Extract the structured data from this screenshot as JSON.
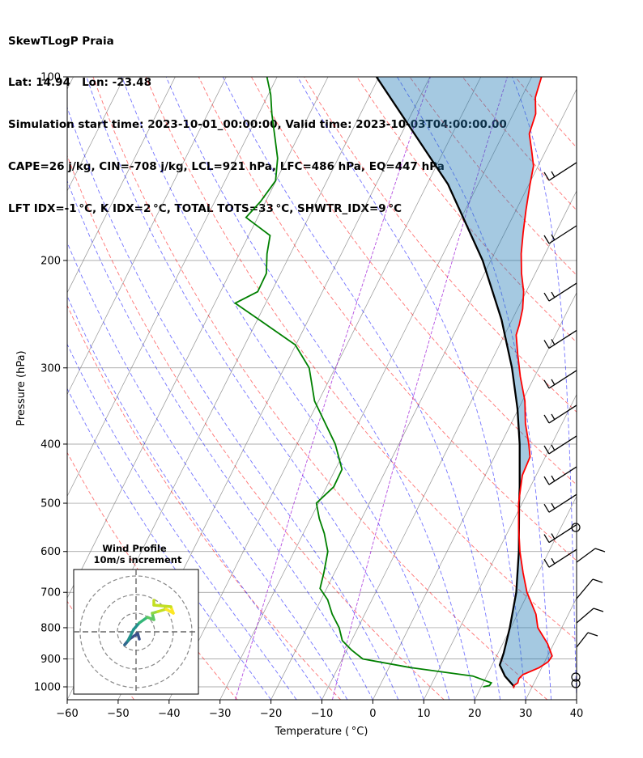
{
  "header": {
    "line1": "SkewTLogP Praia",
    "line2": "Lat: 14.94   Lon: -23.48",
    "line3": "Simulation start time: 2023-10-01_00:00:00, Valid time: 2023-10-03T04:00:00.00",
    "line4": "CAPE=26 j/kg, CIN=-708 j/kg, LCL=921 hPa, LFC=486 hPa, EQ=447 hPa",
    "line5": "LFT IDX=-1 °C, K IDX=2 °C, TOTAL TOTS=33 °C, SHWTR_IDX=9 °C"
  },
  "chart_data": {
    "type": "skewt",
    "xlabel": "Temperature ( °C)",
    "ylabel": "Pressure (hPa)",
    "xlim": [
      -60,
      40
    ],
    "ylim": [
      1050,
      100
    ],
    "x_ticks": [
      "−60",
      "−50",
      "−40",
      "−30",
      "−20",
      "−10",
      "0",
      "10",
      "20",
      "30",
      "40"
    ],
    "y_ticks": [
      {
        "p": 100,
        "label": "100"
      },
      {
        "p": 200,
        "label": "200"
      },
      {
        "p": 300,
        "label": "300"
      },
      {
        "p": 400,
        "label": "400"
      },
      {
        "p": 500,
        "label": "500"
      },
      {
        "p": 600,
        "label": "600"
      },
      {
        "p": 700,
        "label": "700"
      },
      {
        "p": 800,
        "label": "800"
      },
      {
        "p": 900,
        "label": "900"
      },
      {
        "p": 1000,
        "label": "1000"
      }
    ],
    "colors": {
      "temperature": "#ff0000",
      "dewpoint": "#008000",
      "parcel": "#000000",
      "cape_fill": "#1f77b4",
      "dry_adiabat": "#ff0000",
      "moist_adiabat": "#0000ff",
      "mixing_ratio": "#9400d3",
      "isotherm": "#808080"
    },
    "temperature": [
      [
        1005,
        26.5
      ],
      [
        995,
        26.3
      ],
      [
        985,
        26.8
      ],
      [
        970,
        26.6
      ],
      [
        955,
        27.0
      ],
      [
        930,
        29.5
      ],
      [
        910,
        30.7
      ],
      [
        890,
        30.9
      ],
      [
        850,
        28.8
      ],
      [
        800,
        25.3
      ],
      [
        760,
        23.6
      ],
      [
        700,
        19.7
      ],
      [
        650,
        17.0
      ],
      [
        600,
        14.3
      ],
      [
        550,
        11.8
      ],
      [
        500,
        9.3
      ],
      [
        470,
        8.1
      ],
      [
        450,
        7.3
      ],
      [
        420,
        7.0
      ],
      [
        400,
        5.5
      ],
      [
        370,
        2.8
      ],
      [
        340,
        0.5
      ],
      [
        310,
        -2.8
      ],
      [
        285,
        -5.5
      ],
      [
        265,
        -7.7
      ],
      [
        255,
        -8.1
      ],
      [
        240,
        -9.0
      ],
      [
        225,
        -10.5
      ],
      [
        210,
        -12.7
      ],
      [
        195,
        -14.7
      ],
      [
        180,
        -16.4
      ],
      [
        165,
        -18.1
      ],
      [
        150,
        -19.8
      ],
      [
        140,
        -20.9
      ],
      [
        132,
        -22.8
      ],
      [
        124,
        -24.9
      ],
      [
        115,
        -25.6
      ],
      [
        108,
        -27.3
      ],
      [
        100,
        -28.1
      ]
    ],
    "dewpoint": [
      [
        1000,
        20.4
      ],
      [
        995,
        21.5
      ],
      [
        985,
        21.6
      ],
      [
        960,
        17.3
      ],
      [
        930,
        4.3
      ],
      [
        900,
        -6.0
      ],
      [
        870,
        -9.1
      ],
      [
        840,
        -11.8
      ],
      [
        800,
        -13.7
      ],
      [
        760,
        -16.4
      ],
      [
        720,
        -18.7
      ],
      [
        690,
        -21.3
      ],
      [
        650,
        -22.1
      ],
      [
        600,
        -23.4
      ],
      [
        560,
        -25.9
      ],
      [
        530,
        -28.3
      ],
      [
        500,
        -30.4
      ],
      [
        470,
        -28.6
      ],
      [
        440,
        -28.7
      ],
      [
        400,
        -32.5
      ],
      [
        340,
        -40.8
      ],
      [
        300,
        -45.1
      ],
      [
        275,
        -50.1
      ],
      [
        250,
        -59.7
      ],
      [
        235,
        -66.0
      ],
      [
        225,
        -62.7
      ],
      [
        210,
        -62.8
      ],
      [
        195,
        -64.6
      ],
      [
        182,
        -65.8
      ],
      [
        170,
        -72.3
      ],
      [
        160,
        -71.0
      ],
      [
        148,
        -70.1
      ],
      [
        136,
        -71.9
      ],
      [
        126,
        -74.4
      ],
      [
        115,
        -77.4
      ],
      [
        107,
        -79.5
      ],
      [
        100,
        -82.0
      ]
    ],
    "parcel": [
      [
        1000,
        26.5
      ],
      [
        960,
        23.6
      ],
      [
        921,
        21.5
      ],
      [
        880,
        21.1
      ],
      [
        800,
        19.8
      ],
      [
        700,
        17.6
      ],
      [
        600,
        14.1
      ],
      [
        500,
        9.4
      ],
      [
        470,
        7.9
      ],
      [
        447,
        6.6
      ],
      [
        400,
        3.7
      ],
      [
        350,
        -0.2
      ],
      [
        300,
        -5.3
      ],
      [
        250,
        -12.1
      ],
      [
        200,
        -21.6
      ],
      [
        150,
        -35.9
      ],
      [
        100,
        -60.5
      ]
    ],
    "inset": {
      "title_line1": "Wind Profile",
      "title_line2": "10m/s increment"
    }
  }
}
